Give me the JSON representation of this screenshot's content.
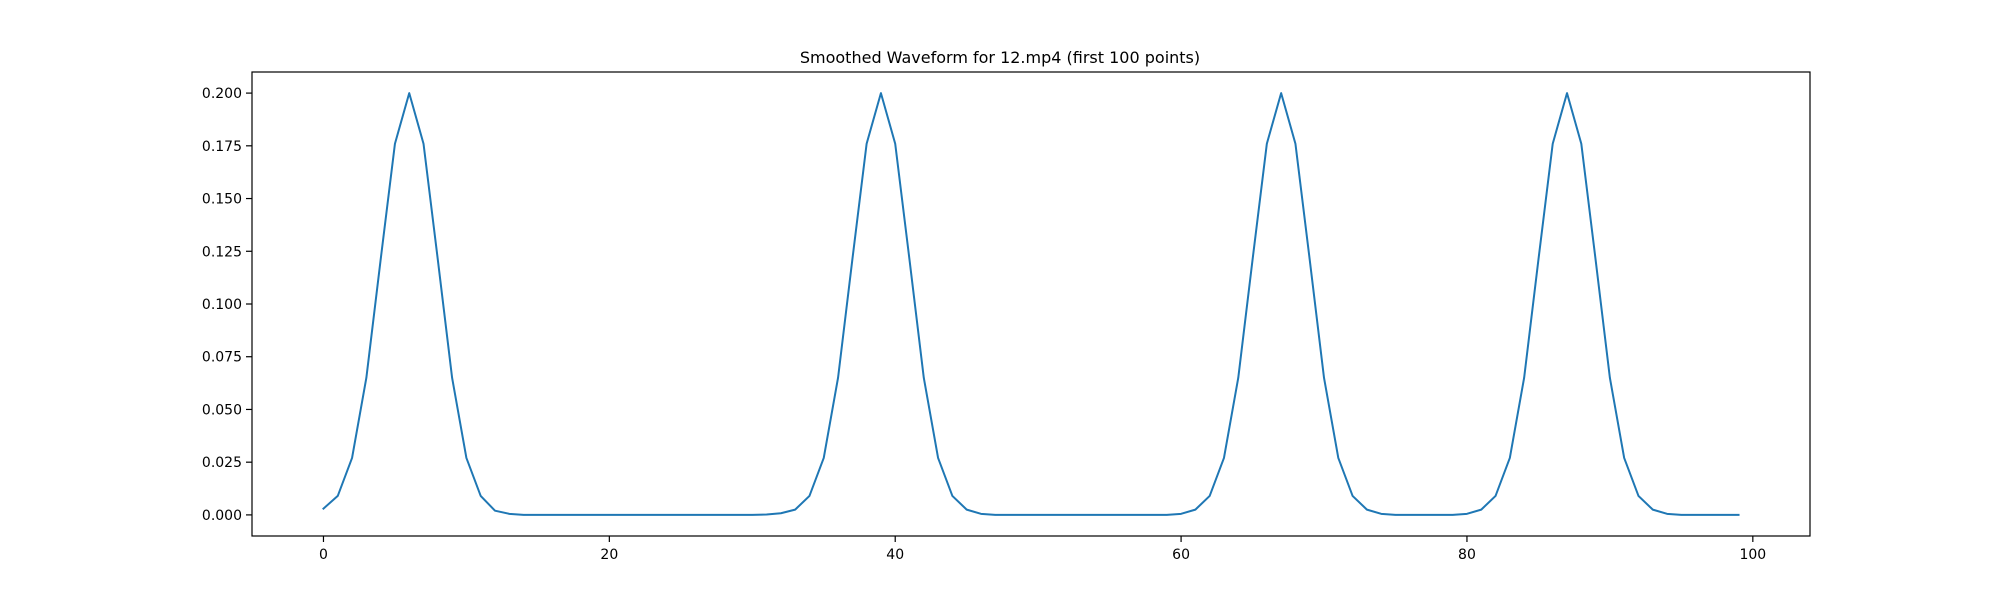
{
  "chart_data": {
    "type": "line",
    "title": "Smoothed Waveform for 12.mp4 (first 100 points)",
    "xlabel": "",
    "ylabel": "",
    "xlim": [
      -5,
      104
    ],
    "ylim": [
      -0.01,
      0.21
    ],
    "xticks": [
      0,
      20,
      40,
      60,
      80,
      100
    ],
    "xtick_labels": [
      "0",
      "20",
      "40",
      "60",
      "80",
      "100"
    ],
    "yticks": [
      0.0,
      0.025,
      0.05,
      0.075,
      0.1,
      0.125,
      0.15,
      0.175,
      0.2
    ],
    "ytick_labels": [
      "0.000",
      "0.025",
      "0.050",
      "0.075",
      "0.100",
      "0.125",
      "0.150",
      "0.175",
      "0.200"
    ],
    "grid": false,
    "legend": "none",
    "series": [
      {
        "color": "#1f77b4",
        "x": [
          0,
          1,
          2,
          3,
          4,
          5,
          6,
          7,
          8,
          9,
          10,
          11,
          12,
          13,
          14,
          15,
          16,
          17,
          18,
          19,
          20,
          21,
          22,
          23,
          24,
          25,
          26,
          27,
          28,
          29,
          30,
          31,
          32,
          33,
          34,
          35,
          36,
          37,
          38,
          39,
          40,
          41,
          42,
          43,
          44,
          45,
          46,
          47,
          48,
          49,
          50,
          51,
          52,
          53,
          54,
          55,
          56,
          57,
          58,
          59,
          60,
          61,
          62,
          63,
          64,
          65,
          66,
          67,
          68,
          69,
          70,
          71,
          72,
          73,
          74,
          75,
          76,
          77,
          78,
          79,
          80,
          81,
          82,
          83,
          84,
          85,
          86,
          87,
          88,
          89,
          90,
          91,
          92,
          93,
          94,
          95,
          96,
          97,
          98,
          99
        ],
        "y": [
          0.003,
          0.009,
          0.027,
          0.065,
          0.121,
          0.176,
          0.2,
          0.176,
          0.121,
          0.065,
          0.027,
          0.009,
          0.002,
          0.0005,
          0.0,
          0.0,
          0.0,
          0.0,
          0.0,
          0.0,
          0.0,
          0.0,
          0.0,
          0.0,
          0.0,
          0.0,
          0.0,
          0.0,
          0.0,
          0.0,
          0.0,
          0.0002,
          0.0008,
          0.0025,
          0.009,
          0.027,
          0.065,
          0.121,
          0.176,
          0.2,
          0.176,
          0.121,
          0.065,
          0.027,
          0.009,
          0.0025,
          0.0005,
          0.0,
          0.0,
          0.0,
          0.0,
          0.0,
          0.0,
          0.0,
          0.0,
          0.0,
          0.0,
          0.0,
          0.0,
          0.0,
          0.0005,
          0.0025,
          0.009,
          0.027,
          0.065,
          0.121,
          0.176,
          0.2,
          0.176,
          0.121,
          0.065,
          0.027,
          0.009,
          0.0025,
          0.0005,
          0.0,
          0.0,
          0.0,
          0.0,
          0.0,
          0.0005,
          0.0025,
          0.009,
          0.027,
          0.065,
          0.121,
          0.176,
          0.2,
          0.176,
          0.121,
          0.065,
          0.027,
          0.009,
          0.0025,
          0.0005,
          0.0,
          0.0,
          0.0,
          0.0,
          0.0
        ]
      }
    ]
  }
}
